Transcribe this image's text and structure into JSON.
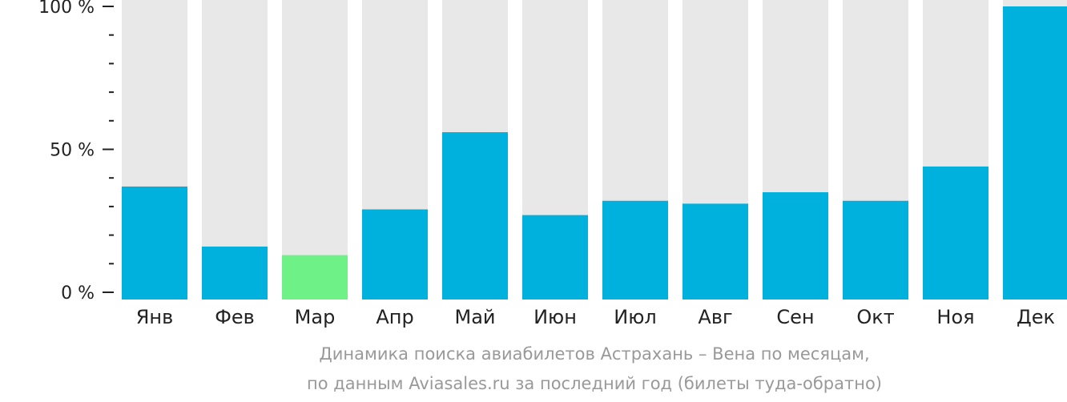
{
  "chart_data": {
    "type": "bar",
    "categories": [
      "Янв",
      "Фев",
      "Мар",
      "Апр",
      "Май",
      "Июн",
      "Июл",
      "Авг",
      "Сен",
      "Окт",
      "Ноя",
      "Дек"
    ],
    "values": [
      37,
      16,
      13,
      29,
      56,
      27,
      32,
      31,
      35,
      32,
      44,
      100
    ],
    "highlight_index": 2,
    "ylim": [
      0,
      100
    ],
    "yticks": [
      {
        "value": 0,
        "label": "0 %"
      },
      {
        "value": 50,
        "label": "50 %"
      },
      {
        "value": 100,
        "label": "100 %"
      }
    ],
    "minor_tick_step": 10,
    "colors": {
      "bar": "#00b1dd",
      "highlight": "#6ef287",
      "background_bar": "#e8e8e8",
      "axis": "#222222",
      "caption": "#999999"
    },
    "caption_line1": "Динамика поиска авиабилетов Астрахань – Вена по месяцам,",
    "caption_line2": "по данным Aviasales.ru за последний год (билеты туда-обратно)"
  }
}
